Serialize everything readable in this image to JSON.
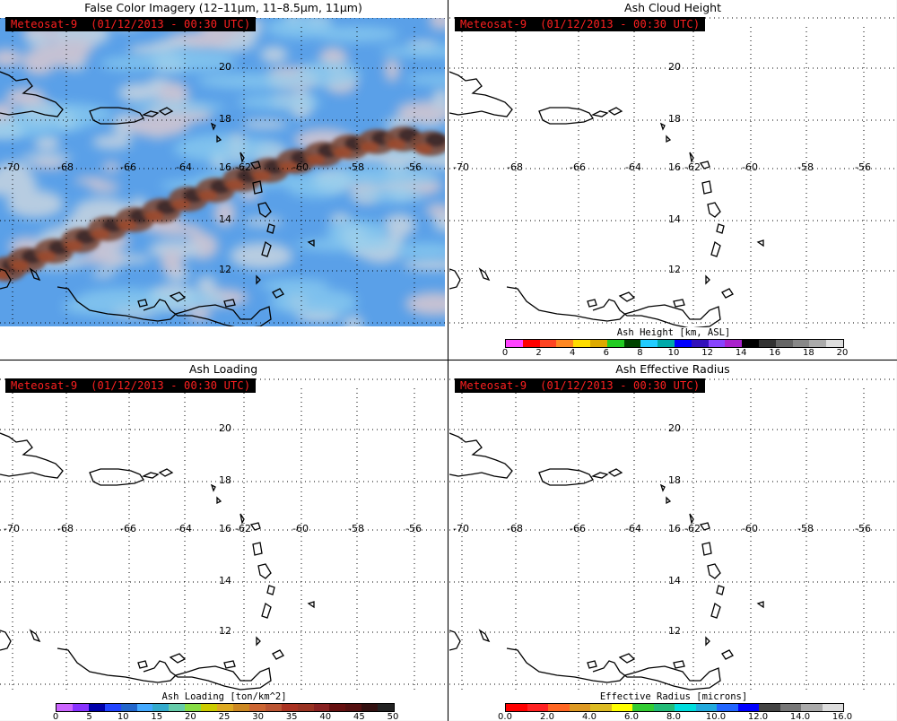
{
  "panels": [
    {
      "title": "False Color Imagery (12–11μm, 11–8.5μm, 11μm)",
      "stamp": "Meteosat-9  (01/12/2013 - 00:30 UTC)",
      "kind": "imagery"
    },
    {
      "title": "Ash Cloud Height",
      "stamp": "Meteosat-9  (01/12/2013 - 00:30 UTC)",
      "kind": "map",
      "colorbar": {
        "title": "Ash Height [km, ASL]",
        "colors": [
          "#ff44ff",
          "#ff0000",
          "#ff4422",
          "#ff8822",
          "#ffdd00",
          "#ddaa00",
          "#22cc22",
          "#004400",
          "#22ccff",
          "#00aaaa",
          "#0000ff",
          "#3311bb",
          "#8844ff",
          "#aa22cc",
          "#000000",
          "#333333",
          "#666666",
          "#888888",
          "#aaaaaa",
          "#dddddd"
        ],
        "ticks": [
          "0",
          "2",
          "4",
          "6",
          "8",
          "10",
          "12",
          "14",
          "16",
          "18",
          "20"
        ]
      }
    },
    {
      "title": "Ash Loading",
      "stamp": "Meteosat-9  (01/12/2013 - 00:30 UTC)",
      "kind": "map",
      "colorbar": {
        "title": "Ash Loading [ton/km^2]",
        "colors": [
          "#cc66ff",
          "#8833ff",
          "#0000aa",
          "#2244ff",
          "#2266cc",
          "#44aaff",
          "#33aacc",
          "#66ccaa",
          "#88dd44",
          "#cccc00",
          "#ddaa22",
          "#cc8822",
          "#cc6633",
          "#bb5533",
          "#aa3322",
          "#993322",
          "#882222",
          "#661111",
          "#551111",
          "#331111",
          "#222222"
        ],
        "ticks": [
          "0",
          "5",
          "10",
          "15",
          "20",
          "25",
          "30",
          "35",
          "40",
          "45",
          "50"
        ]
      }
    },
    {
      "title": "Ash Effective Radius",
      "stamp": "Meteosat-9  (01/12/2013 - 00:30 UTC)",
      "kind": "map",
      "colorbar": {
        "title": "Effective Radius [microns]",
        "colors": [
          "#ff0000",
          "#ff2222",
          "#ff6622",
          "#dd9922",
          "#ddbb22",
          "#ffff00",
          "#33cc33",
          "#22bb77",
          "#00dddd",
          "#22aadd",
          "#2266ff",
          "#0000ff",
          "#444444",
          "#777777",
          "#aaaaaa",
          "#dddddd"
        ],
        "ticks": [
          "0.0",
          "2.0",
          "4.0",
          "6.0",
          "8.0",
          "10.0",
          "12.0",
          "14.0",
          "16.0"
        ]
      }
    }
  ],
  "grid": {
    "lon_labels": [
      "-70",
      "-68",
      "-66",
      "-64",
      "-62",
      "-60",
      "-58",
      "-56"
    ],
    "lat_labels": [
      "20",
      "18",
      "16",
      "14",
      "12"
    ]
  }
}
